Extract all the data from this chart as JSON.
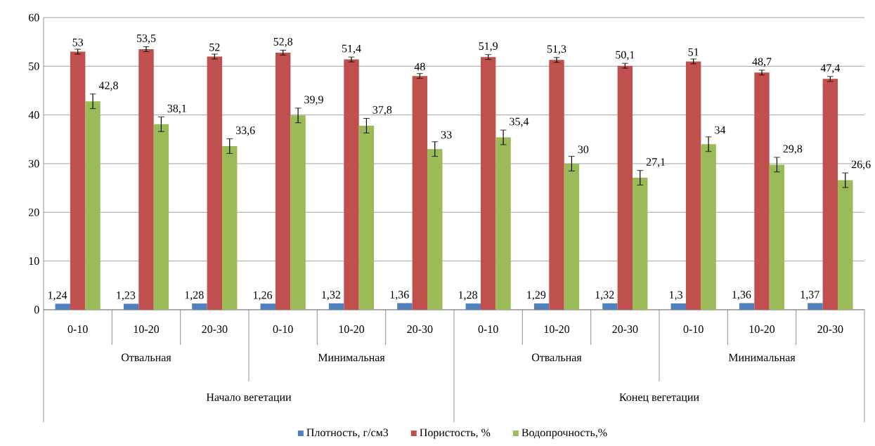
{
  "chart_data": {
    "type": "bar",
    "categories": [
      "0-10",
      "10-20",
      "20-30",
      "0-10",
      "10-20",
      "20-30",
      "0-10",
      "10-20",
      "20-30",
      "0-10",
      "10-20",
      "20-30"
    ],
    "series": [
      {
        "name": "Плотность, г/см3",
        "color": "#4f81bd",
        "values": [
          1.24,
          1.23,
          1.28,
          1.26,
          1.32,
          1.36,
          1.28,
          1.29,
          1.32,
          1.3,
          1.36,
          1.37
        ],
        "value_labels": [
          "1,24",
          "1,23",
          "1,28",
          "1,26",
          "1,32",
          "1,36",
          "1,28",
          "1,29",
          "1,32",
          "1,3",
          "1,36",
          "1,37"
        ]
      },
      {
        "name": "Пористость, %",
        "color": "#c0504d",
        "values": [
          53,
          53.5,
          52,
          52.8,
          51.4,
          48,
          51.9,
          51.3,
          50.1,
          51,
          48.7,
          47.4
        ],
        "errors": [
          0.5,
          0.5,
          0.5,
          0.5,
          0.5,
          0.5,
          0.5,
          0.5,
          0.5,
          0.5,
          0.5,
          0.5
        ],
        "value_labels": [
          "53",
          "53,5",
          "52",
          "52,8",
          "51,4",
          "48",
          "51,9",
          "51,3",
          "50,1",
          "51",
          "48,7",
          "47,4"
        ]
      },
      {
        "name": "Водопрочность,%",
        "color": "#9bbb59",
        "values": [
          42.8,
          38.1,
          33.6,
          39.9,
          37.8,
          33,
          35.4,
          30,
          27.1,
          34,
          29.8,
          26.6
        ],
        "errors": [
          1.5,
          1.5,
          1.5,
          1.5,
          1.5,
          1.5,
          1.5,
          1.5,
          1.5,
          1.5,
          1.5,
          1.5
        ],
        "value_labels": [
          "42,8",
          "38,1",
          "33,6",
          "39,9",
          "37,8",
          "33",
          "35,4",
          "30",
          "27,1",
          "34",
          "29,8",
          "26,6"
        ]
      }
    ],
    "annotations": [
      "Отвальная",
      "Минимальная",
      "Отвальная",
      "Минимальная",
      "Начало вегетации",
      "Конец вегетации"
    ],
    "ylim": [
      0,
      60
    ],
    "yticks": [
      0,
      10,
      20,
      30,
      40,
      50,
      60
    ],
    "grid": "y",
    "legend": "bottom"
  }
}
